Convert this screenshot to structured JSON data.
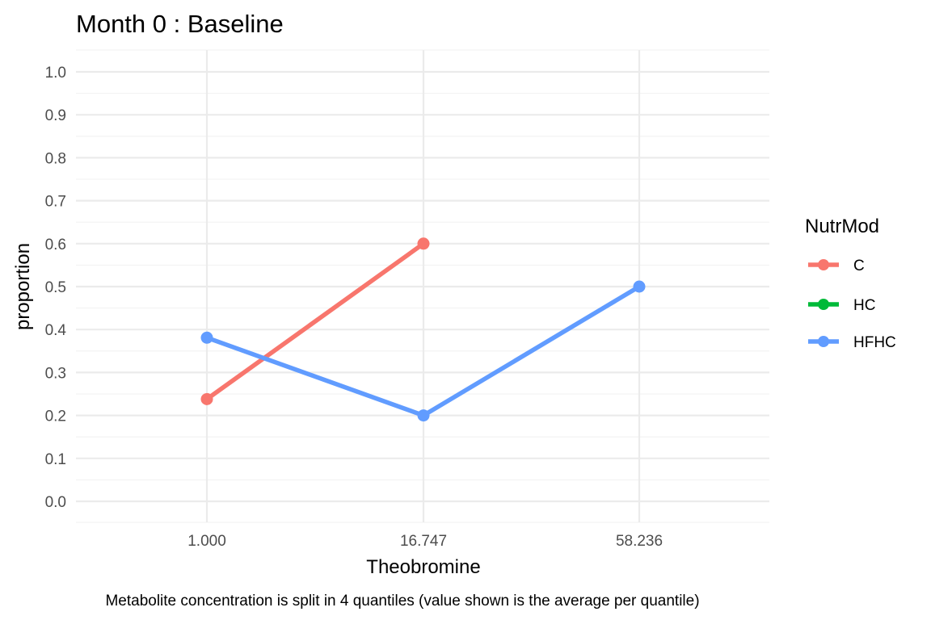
{
  "chart_data": {
    "type": "line",
    "title": "Month 0 : Baseline",
    "xlabel": "Theobromine",
    "ylabel": "proportion",
    "caption": "Metabolite concentration is split in 4 quantiles (value shown is the average per quantile)",
    "categories": [
      "1.000",
      "16.747",
      "58.236"
    ],
    "ylim": [
      0,
      1
    ],
    "yticks": [
      "0.0",
      "0.1",
      "0.2",
      "0.3",
      "0.4",
      "0.5",
      "0.6",
      "0.7",
      "0.8",
      "0.9",
      "1.0"
    ],
    "grid": true,
    "legend": {
      "title": "NutrMod",
      "position": "right",
      "entries": [
        "C",
        "HC",
        "HFHC"
      ]
    },
    "series": [
      {
        "name": "C",
        "color": "#F8766D",
        "values": [
          0.238,
          0.6,
          null
        ]
      },
      {
        "name": "HC",
        "color": "#00BA38",
        "values": [
          null,
          null,
          null
        ]
      },
      {
        "name": "HFHC",
        "color": "#619CFF",
        "values": [
          0.381,
          0.2,
          0.5
        ]
      }
    ]
  }
}
